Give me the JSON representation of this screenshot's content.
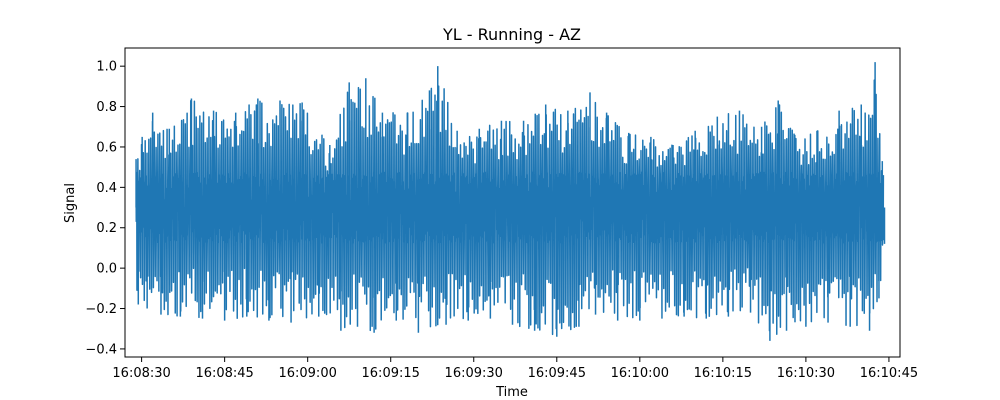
{
  "chart_data": {
    "type": "line",
    "title": "YL - Running - AZ",
    "xlabel": "Time",
    "ylabel": "Signal",
    "xlim": [
      "16:08:27",
      "16:10:47"
    ],
    "ylim": [
      -0.44,
      1.09
    ],
    "x_ticks": [
      "16:08:30",
      "16:08:45",
      "16:09:00",
      "16:09:15",
      "16:09:30",
      "16:09:45",
      "16:10:00",
      "16:10:15",
      "16:10:30",
      "16:10:45"
    ],
    "y_ticks": [
      "−0.4",
      "−0.2",
      "0.0",
      "0.2",
      "0.4",
      "0.6",
      "0.8",
      "1.0"
    ],
    "grid": false,
    "legend": "none",
    "series": [
      {
        "color": "#1f77b4",
        "x_start": "16:08:29",
        "x_end": "16:10:44",
        "sample_count": 4100,
        "baseline": 0.3,
        "points": [
          {
            "t": "16:08:29.0",
            "v": 0.54
          },
          {
            "t": "16:08:29.4",
            "v": -0.18
          },
          {
            "t": "16:08:30.1",
            "v": 0.65
          },
          {
            "t": "16:08:31.0",
            "v": -0.2
          },
          {
            "t": "16:08:32.0",
            "v": 0.77
          },
          {
            "t": "16:08:33.5",
            "v": -0.23
          },
          {
            "t": "16:08:35.0",
            "v": 0.69
          },
          {
            "t": "16:08:37.0",
            "v": -0.24
          },
          {
            "t": "16:08:39.0",
            "v": 0.84
          },
          {
            "t": "16:08:41.0",
            "v": -0.25
          },
          {
            "t": "16:08:43.0",
            "v": 0.78
          },
          {
            "t": "16:08:45.0",
            "v": -0.26
          },
          {
            "t": "16:08:47.0",
            "v": 0.77
          },
          {
            "t": "16:08:49.0",
            "v": -0.24
          },
          {
            "t": "16:08:51.0",
            "v": 0.84
          },
          {
            "t": "16:08:53.0",
            "v": -0.26
          },
          {
            "t": "16:08:55.0",
            "v": 0.83
          },
          {
            "t": "16:08:57.0",
            "v": -0.27
          },
          {
            "t": "16:08:59.0",
            "v": 0.82
          },
          {
            "t": "16:09:02.0",
            "v": -0.24
          },
          {
            "t": "16:09:04.0",
            "v": 0.61
          },
          {
            "t": "16:09:06.0",
            "v": -0.31
          },
          {
            "t": "16:09:07.5",
            "v": 0.92
          },
          {
            "t": "16:09:09.0",
            "v": -0.29
          },
          {
            "t": "16:09:10.5",
            "v": 0.94
          },
          {
            "t": "16:09:12.0",
            "v": -0.32
          },
          {
            "t": "16:09:13.5",
            "v": 0.77
          },
          {
            "t": "16:09:16.0",
            "v": -0.26
          },
          {
            "t": "16:09:18.0",
            "v": 0.77
          },
          {
            "t": "16:09:20.0",
            "v": -0.32
          },
          {
            "t": "16:09:22.0",
            "v": 0.88
          },
          {
            "t": "16:09:23.5",
            "v": 1.0
          },
          {
            "t": "16:09:25.0",
            "v": -0.28
          },
          {
            "t": "16:09:27.0",
            "v": 0.68
          },
          {
            "t": "16:09:29.0",
            "v": -0.26
          },
          {
            "t": "16:09:31.0",
            "v": 0.69
          },
          {
            "t": "16:09:33.0",
            "v": -0.25
          },
          {
            "t": "16:09:35.0",
            "v": 0.73
          },
          {
            "t": "16:09:37.0",
            "v": -0.28
          },
          {
            "t": "16:09:39.0",
            "v": 0.73
          },
          {
            "t": "16:09:41.0",
            "v": -0.31
          },
          {
            "t": "16:09:43.0",
            "v": 0.81
          },
          {
            "t": "16:09:45.0",
            "v": -0.34
          },
          {
            "t": "16:09:47.0",
            "v": 0.78
          },
          {
            "t": "16:09:49.0",
            "v": -0.29
          },
          {
            "t": "16:09:51.0",
            "v": 0.87
          },
          {
            "t": "16:09:52.0",
            "v": -0.23
          },
          {
            "t": "16:09:54.0",
            "v": 0.77
          },
          {
            "t": "16:09:56.0",
            "v": -0.26
          },
          {
            "t": "16:09:58.0",
            "v": 0.67
          },
          {
            "t": "16:10:00.0",
            "v": -0.26
          },
          {
            "t": "16:10:02.0",
            "v": 0.65
          },
          {
            "t": "16:10:04.0",
            "v": -0.25
          },
          {
            "t": "16:10:06.0",
            "v": 0.61
          },
          {
            "t": "16:10:08.0",
            "v": -0.24
          },
          {
            "t": "16:10:10.0",
            "v": 0.68
          },
          {
            "t": "16:10:12.0",
            "v": -0.25
          },
          {
            "t": "16:10:14.0",
            "v": 0.75
          },
          {
            "t": "16:10:16.0",
            "v": -0.24
          },
          {
            "t": "16:10:18.0",
            "v": 0.78
          },
          {
            "t": "16:10:20.0",
            "v": -0.22
          },
          {
            "t": "16:10:22.0",
            "v": 0.7
          },
          {
            "t": "16:10:23.5",
            "v": -0.36
          },
          {
            "t": "16:10:25.0",
            "v": 0.83
          },
          {
            "t": "16:10:26.5",
            "v": -0.31
          },
          {
            "t": "16:10:28.0",
            "v": 0.66
          },
          {
            "t": "16:10:30.0",
            "v": -0.29
          },
          {
            "t": "16:10:32.0",
            "v": 0.68
          },
          {
            "t": "16:10:34.0",
            "v": -0.27
          },
          {
            "t": "16:10:36.0",
            "v": 0.78
          },
          {
            "t": "16:10:38.0",
            "v": -0.29
          },
          {
            "t": "16:10:40.0",
            "v": 0.81
          },
          {
            "t": "16:10:41.5",
            "v": -0.31
          },
          {
            "t": "16:10:42.5",
            "v": 1.02
          },
          {
            "t": "16:10:43.2",
            "v": -0.15
          },
          {
            "t": "16:10:43.8",
            "v": 0.53
          },
          {
            "t": "16:10:44.2",
            "v": 0.12
          }
        ]
      }
    ]
  }
}
